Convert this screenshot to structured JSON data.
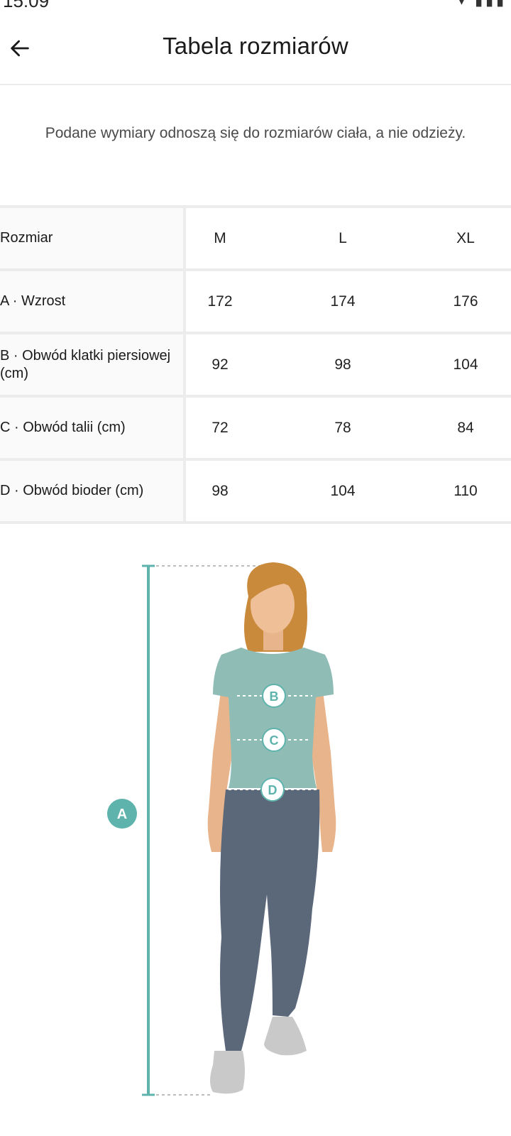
{
  "status_bar": {
    "time": "15:09"
  },
  "header": {
    "title": "Tabela rozmiarów"
  },
  "note": "Podane wymiary odnoszą się do rozmiarów ciała, a nie odzieży.",
  "table": {
    "header_label": "Rozmiar",
    "sizes": [
      "M",
      "L",
      "XL"
    ],
    "rows": [
      {
        "label": "A · Wzrost",
        "values": [
          "172",
          "174",
          "176"
        ]
      },
      {
        "label": "B · Obwód klatki piersiowej (cm)",
        "values": [
          "92",
          "98",
          "104"
        ]
      },
      {
        "label": "C · Obwód talii (cm)",
        "values": [
          "72",
          "78",
          "84"
        ]
      },
      {
        "label": "D · Obwód bioder (cm)",
        "values": [
          "98",
          "104",
          "110"
        ]
      }
    ]
  },
  "figure": {
    "markers": [
      "A",
      "B",
      "C",
      "D"
    ],
    "colors": {
      "accent": "#5fb3ad",
      "shirt": "#8fbdb6",
      "hair": "#c98a3c",
      "skin": "#e8b48c",
      "pants": "#5a6879"
    }
  }
}
